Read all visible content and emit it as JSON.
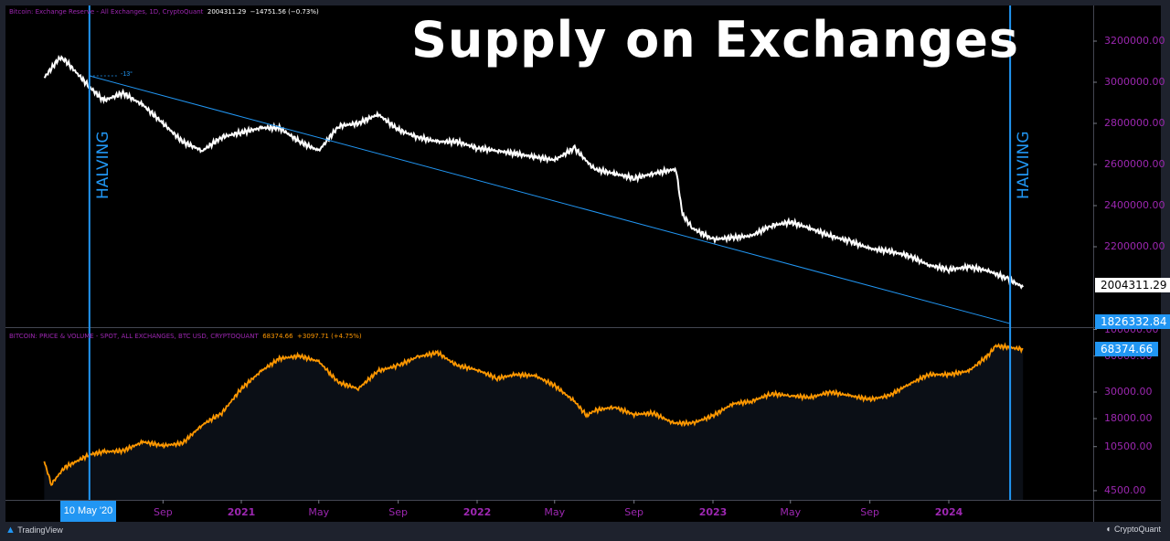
{
  "title": "Supply on Exchanges",
  "halving_label": "HALVING",
  "top_legend": {
    "name": "Bitcoin: Exchange Reserve - All Exchanges, 1D, CryptoQuant",
    "value": "2004311.29",
    "change": "−14751.56 (−0.73%)"
  },
  "bottom_legend": {
    "name": "BITCOIN: PRICE & VOLUME - SPOT, ALL EXCHANGES, BTC USD, CRYPTOQUANT",
    "value": "68374.66",
    "change": "+3097.71 (+4.75%)"
  },
  "trend_angle_label": "-13°",
  "last_value_tag": "2004311.29",
  "trend_value_tag": "1826332.84",
  "price_tag": "68374.66",
  "crosshair_date": "10 May '20",
  "footer": {
    "left": "TradingView",
    "right": "CryptoQuant"
  },
  "colors": {
    "reserve": "#ffffff",
    "price": "#ff9800",
    "halving": "#2196f3",
    "trend": "#2196f3",
    "axis_text": "#9c27b0"
  },
  "chart_data": [
    {
      "type": "line",
      "title": "",
      "series": [
        {
          "name": "Bitcoin: Exchange Reserve - All Exchanges",
          "x": [
            "2020-03-01",
            "2020-03-25",
            "2020-04-01",
            "2020-05-10",
            "2020-06-01",
            "2020-07-01",
            "2020-08-01",
            "2020-09-01",
            "2020-10-01",
            "2020-11-01",
            "2020-12-01",
            "2021-01-01",
            "2021-02-01",
            "2021-03-01",
            "2021-04-01",
            "2021-05-01",
            "2021-06-01",
            "2021-07-01",
            "2021-08-01",
            "2021-09-01",
            "2021-10-01",
            "2021-11-01",
            "2021-12-01",
            "2022-01-01",
            "2022-02-01",
            "2022-03-01",
            "2022-04-01",
            "2022-05-01",
            "2022-06-01",
            "2022-07-01",
            "2022-08-01",
            "2022-09-01",
            "2022-10-01",
            "2022-11-05",
            "2022-11-15",
            "2022-12-01",
            "2023-01-01",
            "2023-02-01",
            "2023-03-01",
            "2023-04-01",
            "2023-05-01",
            "2023-06-01",
            "2023-07-01",
            "2023-08-01",
            "2023-09-01",
            "2023-10-01",
            "2023-11-01",
            "2023-12-01",
            "2024-01-01",
            "2024-02-01",
            "2024-03-01",
            "2024-04-01",
            "2024-04-25"
          ],
          "y": [
            3022000,
            3120000,
            3111000,
            2978000,
            2911000,
            2947000,
            2889000,
            2800000,
            2711000,
            2667000,
            2733000,
            2756000,
            2778000,
            2778000,
            2711000,
            2667000,
            2787000,
            2800000,
            2844000,
            2769000,
            2733000,
            2711000,
            2711000,
            2680000,
            2667000,
            2653000,
            2636000,
            2622000,
            2680000,
            2578000,
            2556000,
            2533000,
            2556000,
            2578000,
            2356000,
            2289000,
            2236000,
            2244000,
            2253000,
            2302000,
            2320000,
            2289000,
            2253000,
            2227000,
            2191000,
            2178000,
            2156000,
            2111000,
            2089000,
            2102000,
            2084000,
            2044000,
            2004311.29
          ]
        }
      ],
      "trendline": {
        "x": [
          "2020-05-10",
          "2024-04-05"
        ],
        "y": [
          3031000,
          1826332.84
        ],
        "angle_label": "-13°"
      },
      "halvings": [
        "2020-05-10",
        "2024-04-05"
      ],
      "yticks": [
        2200000,
        2400000,
        2600000,
        2800000,
        3000000,
        3200000
      ],
      "ytick_labels": [
        "2200000.00",
        "2400000.00",
        "2600000.00",
        "2800000.00",
        "3000000.00",
        "3200000.00"
      ],
      "ylim": [
        1800000,
        3340000
      ],
      "xticks": [
        "Sep",
        "2021",
        "May",
        "Sep",
        "2022",
        "May",
        "Sep",
        "2023",
        "May",
        "Sep",
        "2024"
      ],
      "grid": false
    },
    {
      "type": "area",
      "title": "",
      "yscale": "log",
      "series": [
        {
          "name": "BITCOIN: PRICE & VOLUME - SPOT, ALL EXCHANGES, BTC USD",
          "x": [
            "2020-03-01",
            "2020-03-12",
            "2020-04-01",
            "2020-05-10",
            "2020-06-01",
            "2020-07-01",
            "2020-08-01",
            "2020-09-01",
            "2020-10-01",
            "2020-11-01",
            "2020-12-01",
            "2021-01-01",
            "2021-02-01",
            "2021-03-01",
            "2021-04-01",
            "2021-05-01",
            "2021-05-20",
            "2021-06-01",
            "2021-07-01",
            "2021-08-01",
            "2021-09-01",
            "2021-10-01",
            "2021-11-01",
            "2021-12-01",
            "2022-01-01",
            "2022-02-01",
            "2022-03-01",
            "2022-04-01",
            "2022-05-01",
            "2022-06-01",
            "2022-06-20",
            "2022-07-01",
            "2022-08-01",
            "2022-09-01",
            "2022-10-01",
            "2022-11-01",
            "2022-12-01",
            "2023-01-01",
            "2023-02-01",
            "2023-03-01",
            "2023-04-01",
            "2023-05-01",
            "2023-06-01",
            "2023-07-01",
            "2023-08-01",
            "2023-09-01",
            "2023-10-01",
            "2023-11-01",
            "2023-12-01",
            "2024-01-01",
            "2024-02-01",
            "2024-03-01",
            "2024-03-14",
            "2024-04-25"
          ],
          "y": [
            7900,
            5100,
            7000,
            9000,
            9500,
            9700,
            11500,
            10700,
            11200,
            16000,
            20000,
            32000,
            45000,
            57000,
            60000,
            54000,
            42000,
            36000,
            32000,
            45000,
            50000,
            59000,
            64000,
            50000,
            46000,
            39000,
            42000,
            41000,
            34000,
            25000,
            19000,
            21000,
            22500,
            19500,
            20000,
            16500,
            16500,
            19000,
            24000,
            25000,
            29000,
            28000,
            27000,
            30000,
            28000,
            26000,
            28000,
            35000,
            42000,
            42000,
            45000,
            60000,
            73000,
            68374.66
          ]
        }
      ],
      "yticks": [
        4500,
        10500,
        18000,
        30000,
        60000,
        100000
      ],
      "ytick_labels": [
        "4500.00",
        "10500.00",
        "18000.00",
        "30000.00",
        "60000.00",
        "100000.00"
      ],
      "ylim": [
        3700,
        100000
      ],
      "grid": false
    }
  ]
}
